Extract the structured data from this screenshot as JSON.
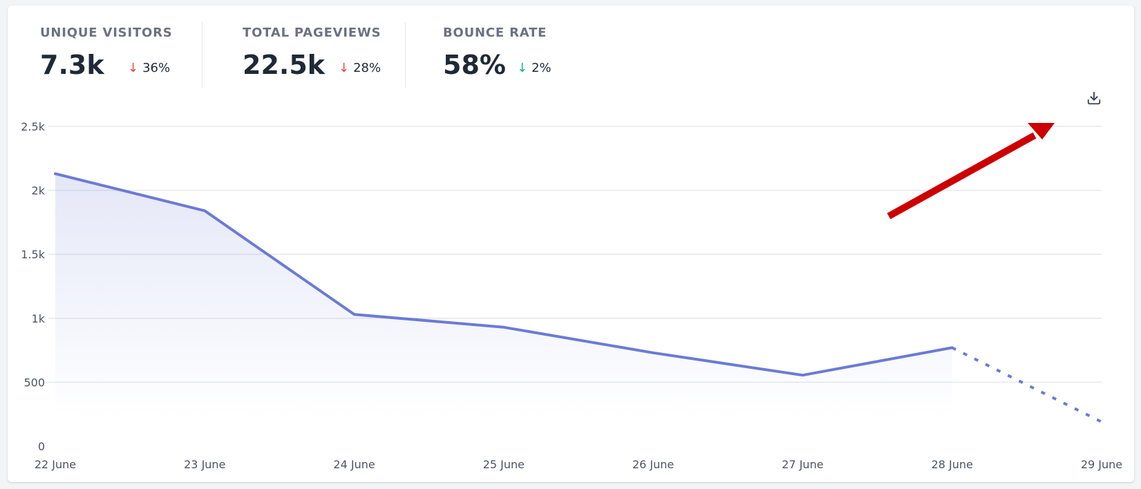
{
  "stats": [
    {
      "label": "UNIQUE VISITORS",
      "value": "7.3k",
      "change": "36%",
      "direction": "down",
      "color": "#ef4444"
    },
    {
      "label": "TOTAL PAGEVIEWS",
      "value": "22.5k",
      "change": "28%",
      "direction": "down",
      "color": "#ef4444"
    },
    {
      "label": "BOUNCE RATE",
      "value": "58%",
      "change": "2%",
      "direction": "down",
      "color": "#10b981"
    }
  ],
  "download": {
    "icon": "download-icon"
  },
  "annotation": {
    "icon": "red-arrow",
    "color": "#cc0000"
  },
  "chart_data": {
    "type": "area",
    "categories": [
      "22 June",
      "23 June",
      "24 June",
      "25 June",
      "26 June",
      "27 June",
      "28 June",
      "29 June"
    ],
    "series": [
      {
        "values": [
          2130,
          1840,
          1030,
          930,
          730,
          555,
          770,
          190
        ],
        "color": "#6b7bd4",
        "dashed_from_index": 6
      }
    ],
    "y_ticks": [
      "0",
      "500",
      "1k",
      "1.5k",
      "2k",
      "2.5k"
    ],
    "y_tick_values": [
      0,
      500,
      1000,
      1500,
      2000,
      2500
    ],
    "ylim": [
      0,
      2500
    ],
    "grid": true
  }
}
